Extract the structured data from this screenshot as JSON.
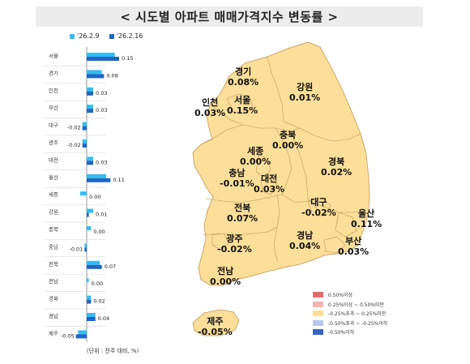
{
  "title": "< 시도별 아파트 매매가격지수 변동률 >",
  "unit_note": "(단위 : 전주 대비, %)",
  "colors": {
    "prev": "#33bdf0",
    "curr": "#2166c4",
    "land": "#fddf9a",
    "border": "#c9a86a"
  },
  "chart_data": {
    "type": "bar",
    "orientation": "horizontal",
    "categories": [
      "서울",
      "경기",
      "인천",
      "부산",
      "대구",
      "광주",
      "대전",
      "울산",
      "세종",
      "강원",
      "충북",
      "충남",
      "전북",
      "전남",
      "경북",
      "경남",
      "제주"
    ],
    "series": [
      {
        "name": "'26.2.9",
        "values": [
          0.13,
          0.07,
          0.03,
          0.03,
          -0.02,
          -0.02,
          0.03,
          0.09,
          -0.03,
          0.03,
          0.02,
          -0.01,
          0.06,
          0.01,
          0.02,
          0.04,
          -0.04
        ]
      },
      {
        "name": "'26.2.16",
        "values": [
          0.15,
          0.08,
          0.03,
          0.03,
          -0.02,
          -0.02,
          0.03,
          0.11,
          0.0,
          0.01,
          0.0,
          -0.01,
          0.07,
          0.0,
          0.02,
          0.04,
          -0.05
        ]
      }
    ],
    "data_labels": [
      "0.15",
      "0.08",
      "0.03",
      "0.03",
      "-0.02",
      "-0.02",
      "0.03",
      "0.11",
      "0.00",
      "0.01",
      "0.00",
      "-0.01",
      "0.07",
      "0.00",
      "0.02",
      "0.04",
      "-0.05"
    ]
  },
  "map": {
    "regions": [
      {
        "name": "경기",
        "value": "0.08%"
      },
      {
        "name": "강원",
        "value": "0.01%"
      },
      {
        "name": "인천",
        "value": "0.03%"
      },
      {
        "name": "서울",
        "value": "0.15%"
      },
      {
        "name": "충북",
        "value": "0.00%"
      },
      {
        "name": "세종",
        "value": "0.00%"
      },
      {
        "name": "경북",
        "value": "0.02%"
      },
      {
        "name": "충남",
        "value": "-0.01%"
      },
      {
        "name": "대전",
        "value": "0.03%"
      },
      {
        "name": "대구",
        "value": "-0.02%"
      },
      {
        "name": "울산",
        "value": "0.11%"
      },
      {
        "name": "전북",
        "value": "0.07%"
      },
      {
        "name": "광주",
        "value": "-0.02%"
      },
      {
        "name": "경남",
        "value": "0.04%"
      },
      {
        "name": "부산",
        "value": "0.03%"
      },
      {
        "name": "전남",
        "value": "0.00%"
      },
      {
        "name": "제주",
        "value": "-0.05%"
      }
    ],
    "legend": [
      {
        "label": "0.50%이상",
        "color": "#e46b6b"
      },
      {
        "label": "0.25%이상 ~ 0.50%미만",
        "color": "#f3b3b0"
      },
      {
        "label": "-0.25%초과 ~ 0.25%미만",
        "color": "#fddf9a"
      },
      {
        "label": "-0.50%초과 ~ -0.25%이하",
        "color": "#b9c6ec"
      },
      {
        "label": "-0.50%이하",
        "color": "#3b63c2"
      }
    ]
  }
}
